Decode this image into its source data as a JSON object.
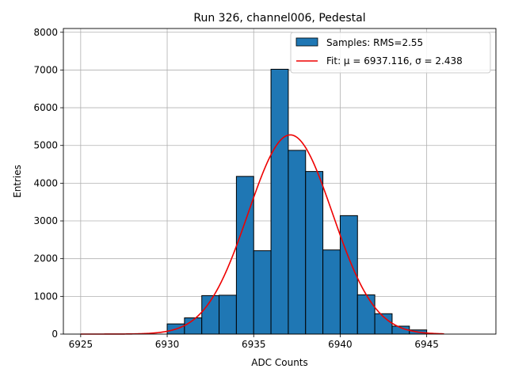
{
  "chart_data": {
    "type": "bar",
    "title": "Run 326, channel006, Pedestal",
    "xlabel": "ADC Counts",
    "ylabel": "Entries",
    "xlim": [
      6924,
      6949
    ],
    "ylim": [
      0,
      8100
    ],
    "x_ticks": [
      6925,
      6930,
      6935,
      6940,
      6945
    ],
    "y_ticks": [
      0,
      1000,
      2000,
      3000,
      4000,
      5000,
      6000,
      7000,
      8000
    ],
    "grid": true,
    "legend_position": "top-right",
    "bin_width": 1,
    "bins": [
      {
        "x0": 6930,
        "value": 270
      },
      {
        "x0": 6931,
        "value": 430
      },
      {
        "x0": 6932,
        "value": 1020
      },
      {
        "x0": 6933,
        "value": 1030
      },
      {
        "x0": 6934,
        "value": 4180
      },
      {
        "x0": 6935,
        "value": 2210
      },
      {
        "x0": 6936,
        "value": 7020
      },
      {
        "x0": 6937,
        "value": 4870
      },
      {
        "x0": 6938,
        "value": 4310
      },
      {
        "x0": 6939,
        "value": 2230
      },
      {
        "x0": 6940,
        "value": 3140
      },
      {
        "x0": 6941,
        "value": 1040
      },
      {
        "x0": 6942,
        "value": 540
      },
      {
        "x0": 6943,
        "value": 210
      },
      {
        "x0": 6944,
        "value": 110
      }
    ],
    "fit": {
      "mu": 6937.116,
      "sigma": 2.438,
      "amplitude": 5280,
      "x_range": [
        6925,
        6946
      ]
    },
    "series": [
      {
        "name": "Samples: RMS=2.55",
        "type": "histogram",
        "color": "#1f77b4"
      },
      {
        "name": "Fit: μ = 6937.116, σ = 2.438",
        "type": "line",
        "color": "#ee0000"
      }
    ]
  }
}
